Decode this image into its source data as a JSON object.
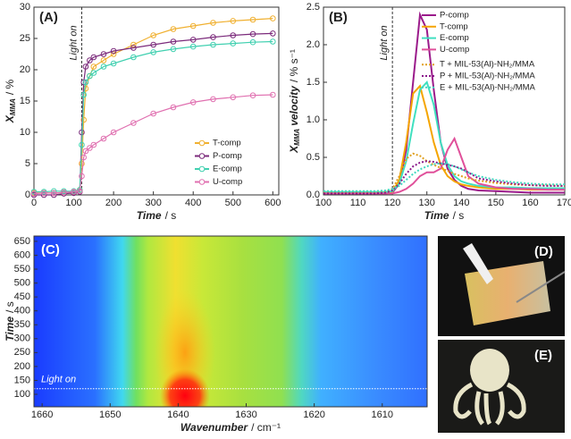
{
  "chart_data": [
    {
      "type": "scatter-line",
      "panel": "(A)",
      "x_label": [
        "Time",
        "/ s"
      ],
      "y_label": {
        "main": "X",
        "sub": "MMA",
        "unit": "/ %"
      },
      "annotation": "Light on",
      "vline": 120,
      "xlim": [
        0,
        615
      ],
      "ylim": [
        0,
        30
      ],
      "xticks": [
        0,
        100,
        200,
        300,
        400,
        500,
        600
      ],
      "yticks": [
        0,
        5,
        10,
        15,
        20,
        25,
        30
      ],
      "x": [
        0,
        25,
        50,
        75,
        100,
        115,
        120,
        125,
        130,
        140,
        150,
        175,
        200,
        250,
        300,
        350,
        400,
        450,
        500,
        550,
        600
      ],
      "series": [
        {
          "name": "T-comp",
          "color": "#f0b030",
          "values": [
            0.3,
            0.3,
            0.3,
            0.4,
            0.5,
            0.8,
            5,
            12,
            17,
            19,
            20.5,
            21.5,
            22.5,
            24,
            25.5,
            26.5,
            27,
            27.5,
            27.8,
            28,
            28.2
          ]
        },
        {
          "name": "P-comp",
          "color": "#7b2a7b",
          "values": [
            0,
            0,
            0,
            0.2,
            0.3,
            0.5,
            10,
            18,
            20.5,
            21.5,
            22,
            22.5,
            23,
            23.5,
            24,
            24.5,
            24.8,
            25.2,
            25.5,
            25.7,
            25.8
          ]
        },
        {
          "name": "E-comp",
          "color": "#40d0b0",
          "values": [
            0.5,
            0.5,
            0.6,
            0.6,
            0.6,
            0.8,
            8,
            16,
            18,
            19,
            19.5,
            20.5,
            21,
            22,
            22.8,
            23.3,
            23.7,
            24,
            24.2,
            24.4,
            24.5
          ]
        },
        {
          "name": "U-comp",
          "color": "#e070b0",
          "values": [
            0.2,
            0.3,
            0.3,
            0.4,
            0.5,
            0.6,
            3,
            6,
            7,
            7.5,
            8,
            9,
            10,
            11.5,
            13,
            14,
            14.8,
            15.3,
            15.6,
            15.9,
            16
          ]
        }
      ]
    },
    {
      "type": "line",
      "panel": "(B)",
      "x_label": [
        "Time",
        "/ s"
      ],
      "y_label": {
        "main": "X",
        "sub": "MMA",
        "rest": "velocity",
        "unit": "/ % s⁻¹"
      },
      "annotation": "Light on",
      "vline": 120,
      "xlim": [
        100,
        170
      ],
      "ylim": [
        0,
        2.5
      ],
      "xticks": [
        100,
        110,
        120,
        130,
        140,
        150,
        160,
        170
      ],
      "yticks": [
        {
          "value": 0,
          "label": "0.0"
        },
        0.5,
        {
          "value": 1,
          "label": "1.0"
        },
        1.5,
        {
          "value": 2,
          "label": "2.0"
        },
        2.5
      ],
      "x": [
        100,
        105,
        110,
        115,
        118,
        120,
        122,
        124,
        126,
        128,
        130,
        132,
        134,
        136,
        138,
        140,
        142,
        145,
        150,
        155,
        160,
        165,
        170
      ],
      "series": [
        {
          "name": "P-comp",
          "color": "#9b1b8b",
          "values": [
            0.02,
            0.02,
            0.02,
            0.02,
            0.02,
            0.03,
            0.15,
            0.6,
            1.5,
            2.4,
            2.2,
            1.4,
            0.7,
            0.35,
            0.2,
            0.12,
            0.08,
            0.06,
            0.05,
            0.04,
            0.03,
            0.03,
            0.03
          ]
        },
        {
          "name": "T-comp",
          "color": "#f5a500",
          "values": [
            0.03,
            0.03,
            0.03,
            0.03,
            0.03,
            0.04,
            0.2,
            0.7,
            1.35,
            1.45,
            1.1,
            0.7,
            0.4,
            0.25,
            0.18,
            0.14,
            0.12,
            0.1,
            0.08,
            0.08,
            0.07,
            0.07,
            0.07
          ]
        },
        {
          "name": "E-comp",
          "color": "#40e0c0",
          "values": [
            0.04,
            0.04,
            0.04,
            0.04,
            0.04,
            0.05,
            0.15,
            0.45,
            0.95,
            1.4,
            1.5,
            1.2,
            0.7,
            0.4,
            0.25,
            0.18,
            0.15,
            0.12,
            0.1,
            0.1,
            0.09,
            0.09,
            0.09
          ]
        },
        {
          "name": "U-comp",
          "color": "#e0509a",
          "values": [
            0.02,
            0.02,
            0.02,
            0.02,
            0.02,
            0.02,
            0.04,
            0.08,
            0.15,
            0.25,
            0.3,
            0.3,
            0.35,
            0.6,
            0.75,
            0.5,
            0.25,
            0.15,
            0.1,
            0.08,
            0.08,
            0.07,
            0.07
          ]
        },
        {
          "name": "T + MIL-53(Al)-NH₂/MMA",
          "color": "#e0a020",
          "dash": true,
          "values": [
            0.03,
            0.03,
            0.03,
            0.03,
            0.05,
            0.08,
            0.25,
            0.48,
            0.55,
            0.52,
            0.45,
            0.4,
            0.36,
            0.32,
            0.28,
            0.25,
            0.22,
            0.19,
            0.16,
            0.14,
            0.13,
            0.13,
            0.12
          ]
        },
        {
          "name": "P + MIL-53(Al)-NH₂/MMA",
          "color": "#8b1b8b",
          "dash": true,
          "values": [
            0.02,
            0.02,
            0.02,
            0.02,
            0.03,
            0.06,
            0.15,
            0.28,
            0.38,
            0.43,
            0.45,
            0.44,
            0.42,
            0.4,
            0.38,
            0.35,
            0.3,
            0.22,
            0.18,
            0.15,
            0.13,
            0.12,
            0.12
          ]
        },
        {
          "name": "E + MIL-53(Al)-NH₂/MMA",
          "color": "#40d8c0",
          "dash": true,
          "values": [
            0.05,
            0.05,
            0.05,
            0.05,
            0.06,
            0.08,
            0.12,
            0.2,
            0.28,
            0.34,
            0.38,
            0.41,
            0.42,
            0.41,
            0.38,
            0.34,
            0.3,
            0.25,
            0.2,
            0.17,
            0.15,
            0.14,
            0.14
          ]
        }
      ]
    },
    {
      "type": "heatmap",
      "panel": "(C)",
      "x_label": [
        "Wavenumber",
        "/ cm⁻¹"
      ],
      "y_label": {
        "main": "Time",
        "unit": "/ s"
      },
      "annotation": "Light on",
      "hline": 120,
      "xlim": [
        1661.2,
        1603.4
      ],
      "ylim": [
        55,
        669
      ],
      "xticks": [
        1660,
        1650,
        1640,
        1630,
        1620,
        1610
      ],
      "yticks": [
        100,
        150,
        200,
        250,
        300,
        350,
        400,
        450,
        500,
        550,
        600,
        650
      ]
    },
    {
      "type": "photo",
      "panel": "(D)"
    },
    {
      "type": "photo",
      "panel": "(E)"
    }
  ]
}
